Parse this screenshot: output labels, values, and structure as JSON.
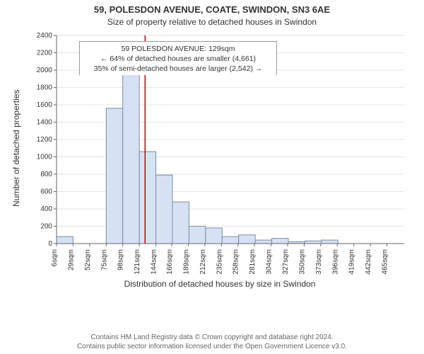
{
  "title": "59, POLESDON AVENUE, COATE, SWINDON, SN3 6AE",
  "subtitle": "Size of property relative to detached houses in Swindon",
  "ylabel": "Number of detached properties",
  "xlabel": "Distribution of detached houses by size in Swindon",
  "footer_line1": "Contains HM Land Registry data © Crown copyright and database right 2024.",
  "footer_line2": "Contains public sector information licensed under the Open Government Licence v3.0.",
  "annotation": {
    "line1": "59 POLESDON AVENUE: 129sqm",
    "line2": "← 64% of detached houses are smaller (4,661)",
    "line3": "35% of semi-detached houses are larger (2,542) →"
  },
  "chart": {
    "type": "histogram",
    "background_color": "#ffffff",
    "plot_border_color": "#666666",
    "grid_color": "#e6e6e6",
    "bar_fill": "#d6e2f3",
    "bar_stroke": "#7a8ba8",
    "marker_line_color": "#cc0000",
    "marker_x": 129,
    "label_fontsize": 12,
    "tick_fontsize": 10,
    "ylim": [
      0,
      2400
    ],
    "ytick_step": 200,
    "x_ticks": [
      6,
      29,
      52,
      75,
      98,
      121,
      144,
      166,
      189,
      212,
      235,
      258,
      281,
      304,
      327,
      350,
      373,
      396,
      419,
      442,
      465
    ],
    "x_tick_suffix": "sqm",
    "bin_width": 23,
    "bin_start": 6,
    "values": [
      80,
      0,
      0,
      1560,
      1960,
      1060,
      790,
      480,
      200,
      180,
      80,
      100,
      40,
      60,
      20,
      30,
      40,
      0,
      0,
      0,
      0
    ]
  }
}
